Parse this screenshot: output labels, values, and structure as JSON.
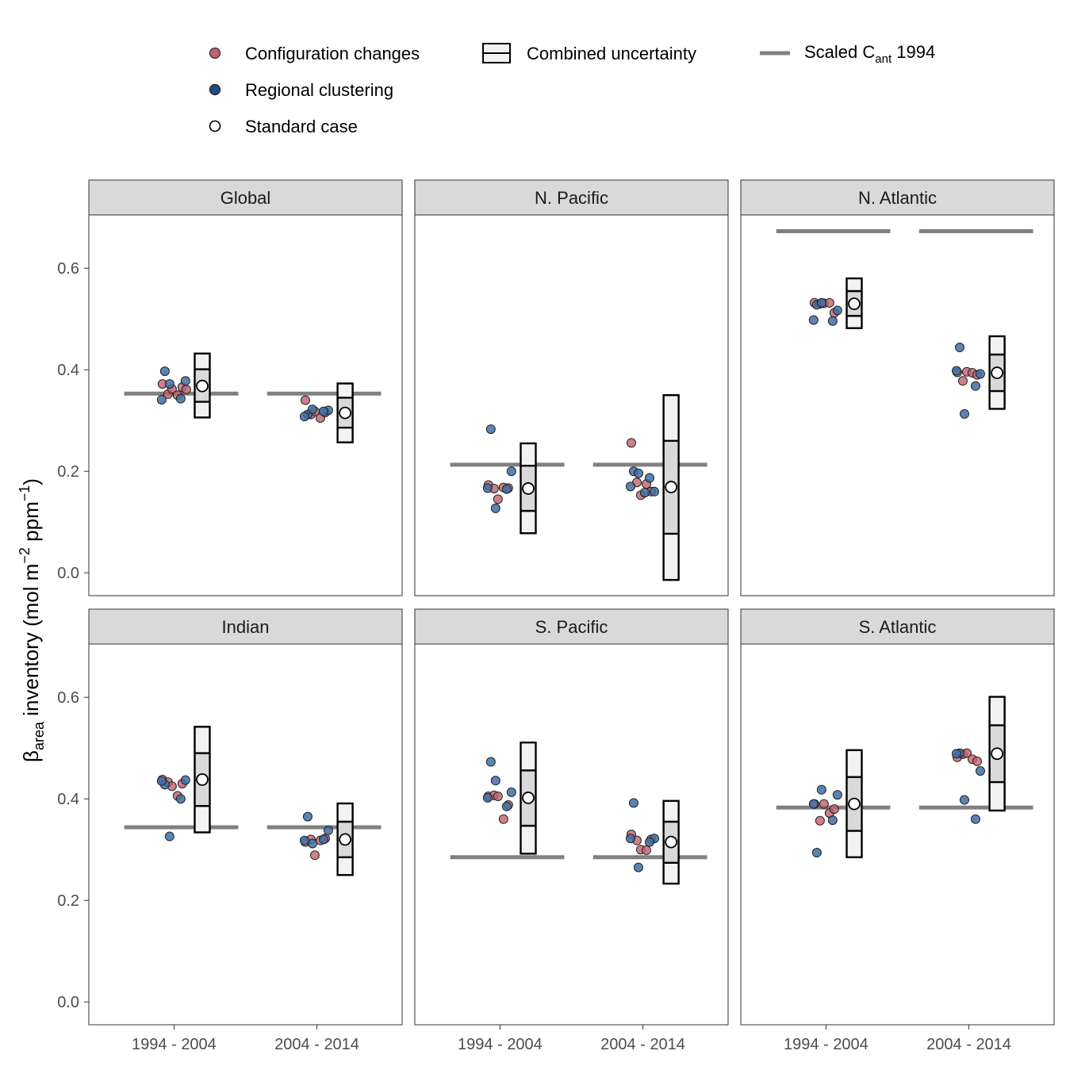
{
  "chart_data": {
    "type": "scatter",
    "ylabel": {
      "beta": "β",
      "beta_sub": "area",
      "main": " inventory (mol m",
      "exp1": "−2",
      "mid": " ppm",
      "exp2": "−1",
      "end": ")"
    },
    "ylim": [
      -0.045,
      0.705
    ],
    "y_ticks": [
      {
        "value": 0.0,
        "label": "0.0"
      },
      {
        "value": 0.2,
        "label": "0.2"
      },
      {
        "value": 0.4,
        "label": "0.4"
      },
      {
        "value": 0.6,
        "label": "0.6"
      }
    ],
    "x_categories": [
      "1994 - 2004",
      "2004 - 2014"
    ],
    "legend": {
      "configuration_changes": "Configuration changes",
      "regional_clustering": "Regional clustering",
      "standard_case": "Standard case",
      "combined_uncertainty": "Combined uncertainty",
      "scaled_cant_prefix": "Scaled C",
      "scaled_cant_sub": "ant",
      "scaled_cant_suffix": " 1994"
    },
    "colors": {
      "configuration_changes": "#c2606e",
      "regional_clustering": "#3e6ea6",
      "scaled_line": "#808080",
      "box_outer_fill": "#f2f2f2",
      "box_inner_fill": "#d9d9d9",
      "strip_fill": "#d9d9d9"
    },
    "panels": [
      {
        "name": "Global",
        "scaled_cant": 0.353,
        "periods": [
          {
            "standard": 0.368,
            "box": {
              "outer": [
                0.306,
                0.432
              ],
              "inner": [
                0.337,
                0.401
              ]
            },
            "configuration": [
              0.372,
              0.352,
              0.362,
              0.35,
              0.366,
              0.361
            ],
            "clustering": [
              0.397,
              0.378,
              0.372,
              0.343,
              0.341
            ]
          },
          {
            "standard": 0.315,
            "box": {
              "outer": [
                0.257,
                0.373
              ],
              "inner": [
                0.286,
                0.345
              ]
            },
            "configuration": [
              0.34,
              0.312,
              0.318,
              0.305,
              0.316
            ],
            "clustering": [
              0.312,
              0.32,
              0.322,
              0.318,
              0.308
            ]
          }
        ]
      },
      {
        "name": "N. Pacific",
        "scaled_cant": 0.213,
        "periods": [
          {
            "standard": 0.166,
            "box": {
              "outer": [
                0.078,
                0.255
              ],
              "inner": [
                0.122,
                0.211
              ]
            },
            "configuration": [
              0.173,
              0.166,
              0.145,
              0.168,
              0.167
            ],
            "clustering": [
              0.283,
              0.2,
              0.127,
              0.165,
              0.167
            ]
          },
          {
            "standard": 0.169,
            "box": {
              "outer": [
                -0.014,
                0.35
              ],
              "inner": [
                0.077,
                0.26
              ]
            },
            "configuration": [
              0.256,
              0.178,
              0.153,
              0.175,
              0.16
            ],
            "clustering": [
              0.2,
              0.16,
              0.196,
              0.187,
              0.17,
              0.158
            ]
          }
        ]
      },
      {
        "name": "N. Atlantic",
        "scaled_cant": 0.673,
        "periods": [
          {
            "standard": 0.53,
            "box": {
              "outer": [
                0.482,
                0.58
              ],
              "inner": [
                0.506,
                0.555
              ]
            },
            "configuration": [
              0.532,
              0.53,
              0.531,
              0.532,
              0.512
            ],
            "clustering": [
              0.528,
              0.517,
              0.532,
              0.496,
              0.498
            ]
          },
          {
            "standard": 0.394,
            "box": {
              "outer": [
                0.323,
                0.466
              ],
              "inner": [
                0.358,
                0.43
              ]
            },
            "configuration": [
              0.395,
              0.378,
              0.396,
              0.394,
              0.39
            ],
            "clustering": [
              0.444,
              0.392,
              0.313,
              0.368,
              0.398
            ]
          }
        ]
      },
      {
        "name": "Indian",
        "scaled_cant": 0.344,
        "periods": [
          {
            "standard": 0.438,
            "box": {
              "outer": [
                0.334,
                0.542
              ],
              "inner": [
                0.386,
                0.49
              ]
            },
            "configuration": [
              0.438,
              0.433,
              0.425,
              0.406,
              0.43
            ],
            "clustering": [
              0.428,
              0.437,
              0.326,
              0.4,
              0.435
            ]
          },
          {
            "standard": 0.32,
            "box": {
              "outer": [
                0.25,
                0.391
              ],
              "inner": [
                0.285,
                0.355
              ]
            },
            "configuration": [
              0.315,
              0.32,
              0.289,
              0.318,
              0.322
            ],
            "clustering": [
              0.365,
              0.338,
              0.312,
              0.32,
              0.318
            ]
          }
        ]
      },
      {
        "name": "S. Pacific",
        "scaled_cant": 0.285,
        "periods": [
          {
            "standard": 0.402,
            "box": {
              "outer": [
                0.292,
                0.511
              ],
              "inner": [
                0.347,
                0.456
              ]
            },
            "configuration": [
              0.405,
              0.407,
              0.405,
              0.36,
              0.388
            ],
            "clustering": [
              0.473,
              0.413,
              0.436,
              0.385,
              0.402
            ]
          },
          {
            "standard": 0.315,
            "box": {
              "outer": [
                0.233,
                0.396
              ],
              "inner": [
                0.274,
                0.355
              ]
            },
            "configuration": [
              0.33,
              0.318,
              0.3,
              0.299,
              0.32
            ],
            "clustering": [
              0.392,
              0.322,
              0.265,
              0.315,
              0.322
            ]
          }
        ]
      },
      {
        "name": "S. Atlantic",
        "scaled_cant": 0.383,
        "periods": [
          {
            "standard": 0.39,
            "box": {
              "outer": [
                0.285,
                0.496
              ],
              "inner": [
                0.337,
                0.443
              ]
            },
            "configuration": [
              0.39,
              0.357,
              0.39,
              0.372,
              0.38
            ],
            "clustering": [
              0.294,
              0.408,
              0.418,
              0.358,
              0.39
            ]
          },
          {
            "standard": 0.489,
            "box": {
              "outer": [
                0.377,
                0.601
              ],
              "inner": [
                0.433,
                0.545
              ]
            },
            "configuration": [
              0.482,
              0.488,
              0.49,
              0.478,
              0.474
            ],
            "clustering": [
              0.49,
              0.455,
              0.398,
              0.36,
              0.489
            ]
          }
        ]
      }
    ]
  }
}
